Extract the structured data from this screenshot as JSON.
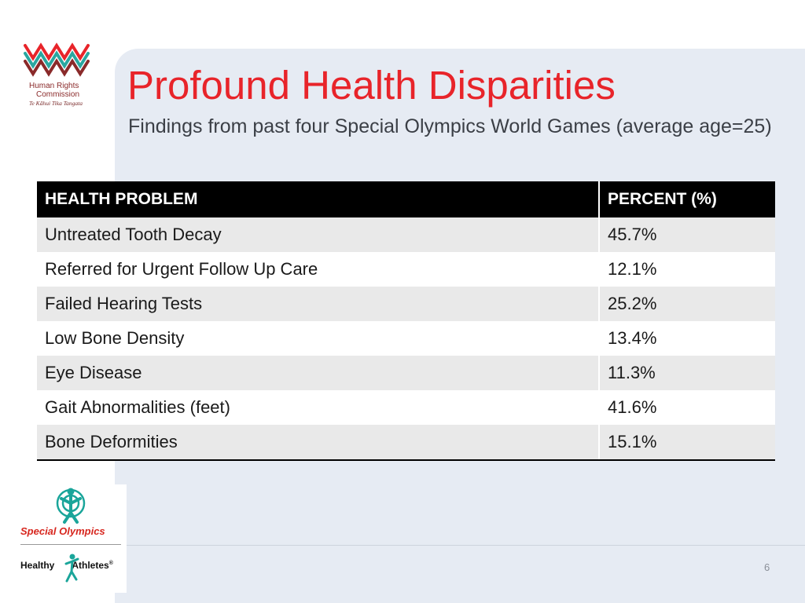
{
  "logo": {
    "name": "Human Rights Commission",
    "line1": "Human Rights",
    "line2": "Commission",
    "subline": "Te Kāhui Tika Tangata",
    "colors": [
      "#e8242a",
      "#2aa7a0",
      "#8a2a2a"
    ]
  },
  "slide": {
    "title": "Profound Health Disparities",
    "subtitle": "Findings from past four Special Olympics World Games (average age=25)",
    "page_number": "6"
  },
  "table": {
    "headers": [
      "HEALTH PROBLEM",
      "PERCENT (%)"
    ],
    "rows": [
      {
        "problem": "Untreated Tooth Decay",
        "percent": "45.7%"
      },
      {
        "problem": "Referred for Urgent Follow Up Care",
        "percent": "12.1%"
      },
      {
        "problem": "Failed Hearing Tests",
        "percent": "25.2%"
      },
      {
        "problem": "Low Bone Density",
        "percent": "13.4%"
      },
      {
        "problem": "Eye Disease",
        "percent": "11.3%"
      },
      {
        "problem": "Gait Abnormalities (feet)",
        "percent": "41.6%"
      },
      {
        "problem": "Bone Deformities",
        "percent": "15.1%"
      }
    ]
  },
  "footer_logos": {
    "special_olympics": "Special Olympics",
    "healthy_athletes_part1": "Healthy",
    "healthy_athletes_part2": "Athletes",
    "registered_mark": "®",
    "special_olympics_color": "#d7261e",
    "teal_color": "#1aa59a"
  }
}
